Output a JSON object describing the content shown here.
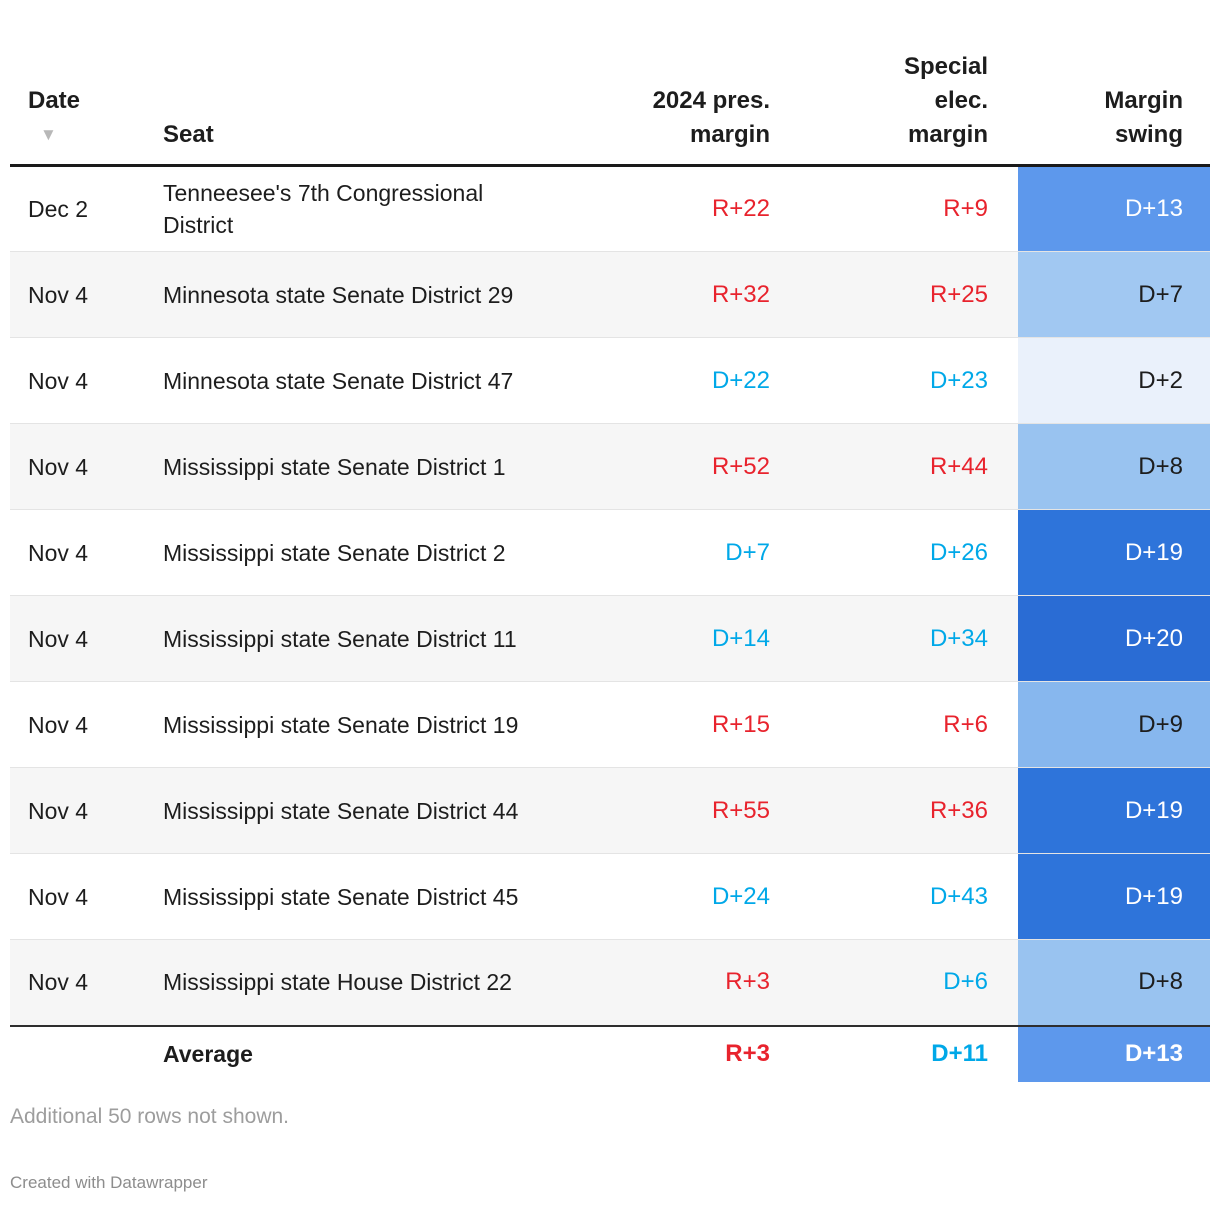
{
  "colors": {
    "republican_red": "#e8232d",
    "democrat_blue": "#00a8e8",
    "header_border": "#1a1a1a",
    "swing_scale_light": "#eaf1fb",
    "swing_scale_dark": "#2a6cd4"
  },
  "table": {
    "header": {
      "date_label": "Date",
      "sort_icon": "▼",
      "seat_label": "Seat",
      "pres_lines": [
        "2024 pres.",
        "margin"
      ],
      "spec_lines": [
        "Special",
        "elec.",
        "margin"
      ],
      "swing_lines": [
        "Margin",
        "swing"
      ]
    },
    "rows": [
      {
        "date": "Dec 2",
        "seat": "Tenneesee's 7th Congressional District",
        "pres": "R+22",
        "pres_color": "#e8232d",
        "spec": "R+9",
        "spec_color": "#e8232d",
        "swing": "D+13",
        "swing_bg": "#5d98ec",
        "swing_fg": "#ffffff"
      },
      {
        "date": "Nov 4",
        "seat": "Minnesota state Senate District 29",
        "pres": "R+32",
        "pres_color": "#e8232d",
        "spec": "R+25",
        "spec_color": "#e8232d",
        "swing": "D+7",
        "swing_bg": "#a1c8f2",
        "swing_fg": "#1d1d1d"
      },
      {
        "date": "Nov 4",
        "seat": "Minnesota state Senate District 47",
        "pres": "D+22",
        "pres_color": "#00a8e8",
        "spec": "D+23",
        "spec_color": "#00a8e8",
        "swing": "D+2",
        "swing_bg": "#eaf1fb",
        "swing_fg": "#1d1d1d"
      },
      {
        "date": "Nov 4",
        "seat": "Mississippi state Senate District 1",
        "pres": "R+52",
        "pres_color": "#e8232d",
        "spec": "R+44",
        "spec_color": "#e8232d",
        "swing": "D+8",
        "swing_bg": "#99c3f0",
        "swing_fg": "#1d1d1d"
      },
      {
        "date": "Nov 4",
        "seat": "Mississippi state Senate District 2",
        "pres": "D+7",
        "pres_color": "#00a8e8",
        "spec": "D+26",
        "spec_color": "#00a8e8",
        "swing": "D+19",
        "swing_bg": "#2e74da",
        "swing_fg": "#ffffff"
      },
      {
        "date": "Nov 4",
        "seat": "Mississippi state Senate District 11",
        "pres": "D+14",
        "pres_color": "#00a8e8",
        "spec": "D+34",
        "spec_color": "#00a8e8",
        "swing": "D+20",
        "swing_bg": "#2a6cd4",
        "swing_fg": "#ffffff"
      },
      {
        "date": "Nov 4",
        "seat": "Mississippi state Senate District 19",
        "pres": "R+15",
        "pres_color": "#e8232d",
        "spec": "R+6",
        "spec_color": "#e8232d",
        "swing": "D+9",
        "swing_bg": "#87b7ee",
        "swing_fg": "#1d1d1d"
      },
      {
        "date": "Nov 4",
        "seat": "Mississippi state Senate District 44",
        "pres": "R+55",
        "pres_color": "#e8232d",
        "spec": "R+36",
        "spec_color": "#e8232d",
        "swing": "D+19",
        "swing_bg": "#2e74da",
        "swing_fg": "#ffffff"
      },
      {
        "date": "Nov 4",
        "seat": "Mississippi state Senate District 45",
        "pres": "D+24",
        "pres_color": "#00a8e8",
        "spec": "D+43",
        "spec_color": "#00a8e8",
        "swing": "D+19",
        "swing_bg": "#2e74da",
        "swing_fg": "#ffffff"
      },
      {
        "date": "Nov 4",
        "seat": "Mississippi state House District 22",
        "pres": "R+3",
        "pres_color": "#e8232d",
        "spec": "D+6",
        "spec_color": "#00a8e8",
        "swing": "D+8",
        "swing_bg": "#99c3f0",
        "swing_fg": "#1d1d1d"
      }
    ],
    "average": {
      "label": "Average",
      "pres": "R+3",
      "pres_color": "#e8232d",
      "spec": "D+11",
      "spec_color": "#00a8e8",
      "swing": "D+13",
      "swing_bg": "#5d98ec",
      "swing_fg": "#ffffff"
    }
  },
  "footer": {
    "note": "Additional 50 rows not shown.",
    "credit": "Created with Datawrapper"
  },
  "chart_data": {
    "type": "table",
    "title": "",
    "columns": [
      "Date",
      "Seat",
      "2024 pres. margin",
      "Special elec. margin",
      "Margin swing"
    ],
    "rows": [
      [
        "Dec 2",
        "Tenneesee's 7th Congressional District",
        "R+22",
        "R+9",
        "D+13"
      ],
      [
        "Nov 4",
        "Minnesota state Senate District 29",
        "R+32",
        "R+25",
        "D+7"
      ],
      [
        "Nov 4",
        "Minnesota state Senate District 47",
        "D+22",
        "D+23",
        "D+2"
      ],
      [
        "Nov 4",
        "Mississippi state Senate District 1",
        "R+52",
        "R+44",
        "D+8"
      ],
      [
        "Nov 4",
        "Mississippi state Senate District 2",
        "D+7",
        "D+26",
        "D+19"
      ],
      [
        "Nov 4",
        "Mississippi state Senate District 11",
        "D+14",
        "D+34",
        "D+20"
      ],
      [
        "Nov 4",
        "Mississippi state Senate District 19",
        "R+15",
        "R+6",
        "D+9"
      ],
      [
        "Nov 4",
        "Mississippi state Senate District 44",
        "R+55",
        "R+36",
        "D+19"
      ],
      [
        "Nov 4",
        "Mississippi state Senate District 45",
        "D+24",
        "D+43",
        "D+19"
      ],
      [
        "Nov 4",
        "Mississippi state House District 22",
        "R+3",
        "D+6",
        "D+8"
      ],
      [
        "",
        "Average",
        "R+3",
        "D+11",
        "D+13"
      ]
    ],
    "notes": "Margin swing cells shaded on a light-to-dark blue scale from D+2 to D+20; sorted descending by Date"
  }
}
